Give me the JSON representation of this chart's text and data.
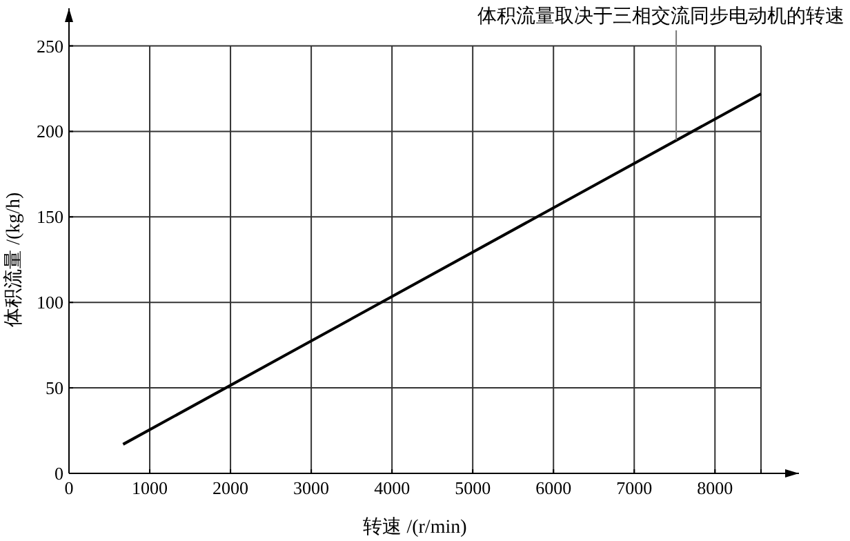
{
  "chart_data": {
    "type": "line",
    "xlabel": "转速 /(r/min)",
    "ylabel": "体积流量 /(kg/h)",
    "annotations": [
      {
        "text": "体积流量取决于三相交流同步电动机的转速",
        "x": 7520,
        "y": 195
      }
    ],
    "x": [
      670,
      8570
    ],
    "series": [
      {
        "color": "#000000",
        "values": [
          17,
          222
        ]
      }
    ],
    "xlim": [
      0,
      9040
    ],
    "ylim": [
      0,
      272
    ],
    "xticks": [
      0,
      1000,
      2000,
      3000,
      4000,
      5000,
      6000,
      7000,
      8000,
      {
        "value": 8570,
        "label": null
      }
    ],
    "yticks": [
      0,
      50,
      100,
      150,
      200,
      250
    ],
    "grid": true,
    "marker": "none",
    "line_style": "solid"
  }
}
